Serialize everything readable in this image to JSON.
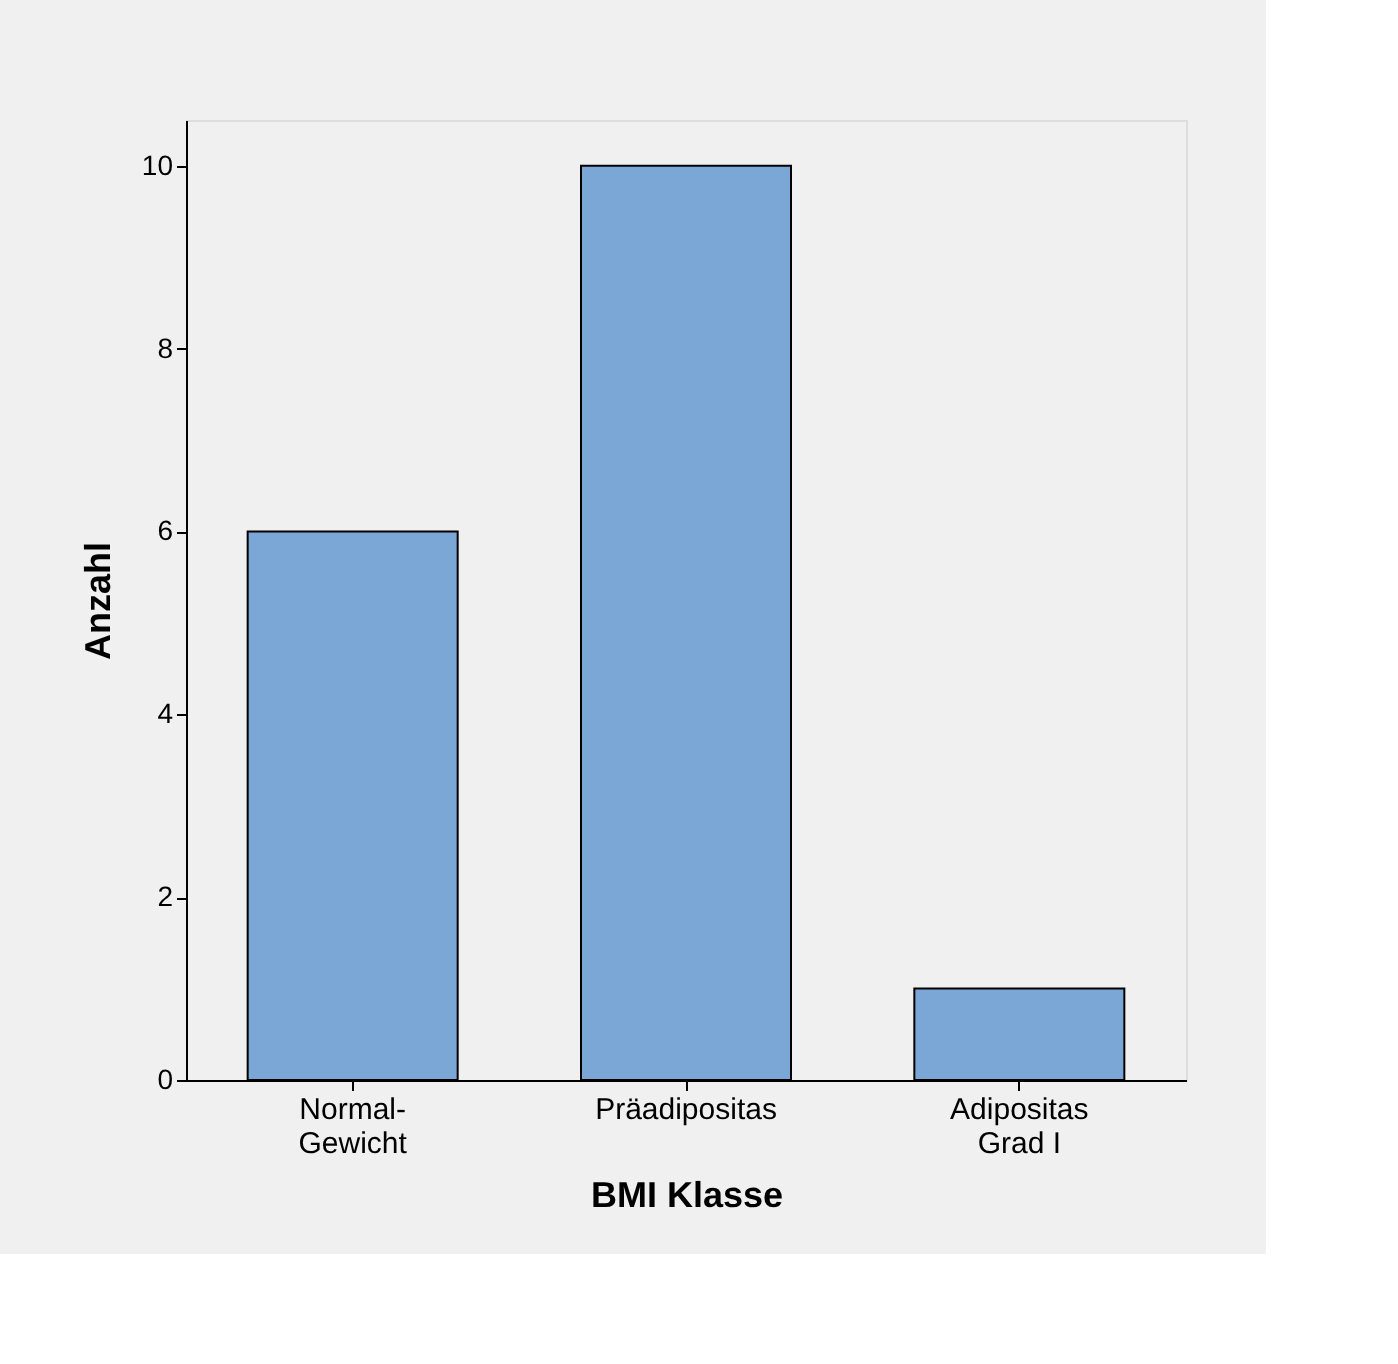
{
  "chart_data": {
    "type": "bar",
    "xlabel": "BMI Klasse",
    "ylabel": "Anzahl",
    "categories": [
      "Normal-\nGewicht",
      "Präadipositas",
      "Adipositas\nGrad I"
    ],
    "values": [
      6,
      10,
      1
    ],
    "color": "#7aa7d6",
    "ylim": [
      0,
      10.5
    ],
    "yticks": [
      0,
      2,
      4,
      6,
      8,
      10
    ],
    "grid": false
  }
}
